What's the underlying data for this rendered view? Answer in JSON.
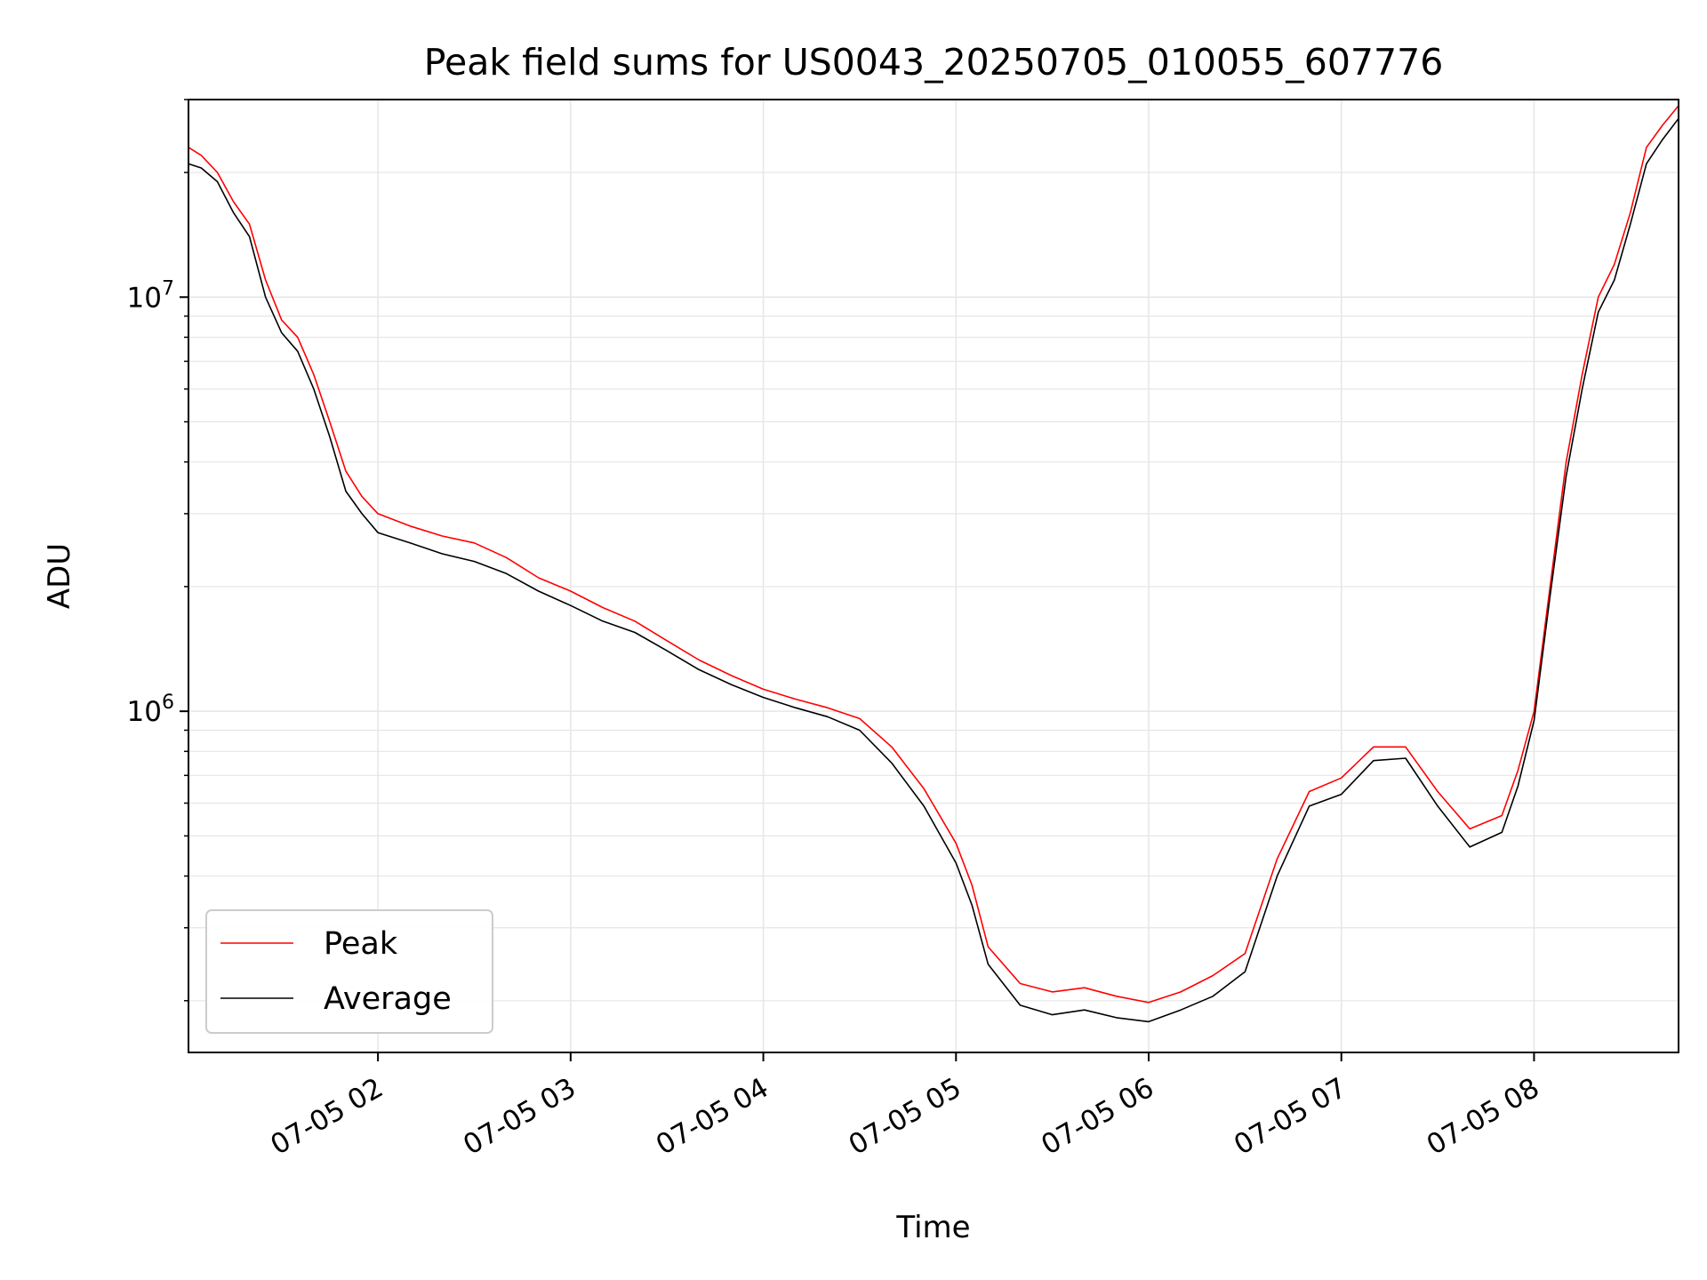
{
  "chart_data": {
    "type": "line",
    "title": "Peak field sums for US0043_20250705_010055_607776",
    "xlabel": "Time",
    "ylabel": "ADU",
    "yscale": "log",
    "ylim": [
      150000,
      30000000
    ],
    "xlim": [
      "2025-07-05 01:01",
      "2025-07-05 08:45"
    ],
    "x_ticks": [
      {
        "t": "2025-07-05 02:00",
        "label": "07-05 02"
      },
      {
        "t": "2025-07-05 03:00",
        "label": "07-05 03"
      },
      {
        "t": "2025-07-05 04:00",
        "label": "07-05 04"
      },
      {
        "t": "2025-07-05 05:00",
        "label": "07-05 05"
      },
      {
        "t": "2025-07-05 06:00",
        "label": "07-05 06"
      },
      {
        "t": "2025-07-05 07:00",
        "label": "07-05 07"
      },
      {
        "t": "2025-07-05 08:00",
        "label": "07-05 08"
      }
    ],
    "y_ticks": [
      {
        "v": 1000000,
        "base": "10",
        "exp": "6"
      },
      {
        "v": 10000000,
        "base": "10",
        "exp": "7"
      }
    ],
    "grid": true,
    "legend_position": "lower-left",
    "series": [
      {
        "name": "Peak",
        "color": "#ff0000"
      },
      {
        "name": "Average",
        "color": "#000000"
      }
    ],
    "x": [
      "2025-07-05 01:01",
      "2025-07-05 01:05",
      "2025-07-05 01:10",
      "2025-07-05 01:15",
      "2025-07-05 01:20",
      "2025-07-05 01:25",
      "2025-07-05 01:30",
      "2025-07-05 01:35",
      "2025-07-05 01:40",
      "2025-07-05 01:45",
      "2025-07-05 01:50",
      "2025-07-05 01:55",
      "2025-07-05 02:00",
      "2025-07-05 02:10",
      "2025-07-05 02:20",
      "2025-07-05 02:30",
      "2025-07-05 02:40",
      "2025-07-05 02:50",
      "2025-07-05 03:00",
      "2025-07-05 03:10",
      "2025-07-05 03:20",
      "2025-07-05 03:30",
      "2025-07-05 03:40",
      "2025-07-05 03:50",
      "2025-07-05 04:00",
      "2025-07-05 04:10",
      "2025-07-05 04:20",
      "2025-07-05 04:30",
      "2025-07-05 04:40",
      "2025-07-05 04:50",
      "2025-07-05 05:00",
      "2025-07-05 05:05",
      "2025-07-05 05:10",
      "2025-07-05 05:20",
      "2025-07-05 05:30",
      "2025-07-05 05:40",
      "2025-07-05 05:50",
      "2025-07-05 06:00",
      "2025-07-05 06:10",
      "2025-07-05 06:20",
      "2025-07-05 06:30",
      "2025-07-05 06:40",
      "2025-07-05 06:50",
      "2025-07-05 07:00",
      "2025-07-05 07:10",
      "2025-07-05 07:20",
      "2025-07-05 07:30",
      "2025-07-05 07:40",
      "2025-07-05 07:50",
      "2025-07-05 07:55",
      "2025-07-05 08:00",
      "2025-07-05 08:05",
      "2025-07-05 08:10",
      "2025-07-05 08:15",
      "2025-07-05 08:20",
      "2025-07-05 08:25",
      "2025-07-05 08:30",
      "2025-07-05 08:35",
      "2025-07-05 08:40",
      "2025-07-05 08:45"
    ],
    "peak_values": [
      23000000,
      22000000,
      20000000,
      17000000,
      15000000,
      11000000,
      8800000,
      8000000,
      6500000,
      5000000,
      3800000,
      3300000,
      3000000,
      2800000,
      2650000,
      2550000,
      2350000,
      2100000,
      1950000,
      1780000,
      1650000,
      1480000,
      1330000,
      1220000,
      1130000,
      1070000,
      1020000,
      960000,
      820000,
      650000,
      480000,
      380000,
      270000,
      220000,
      210000,
      215000,
      205000,
      198000,
      210000,
      230000,
      260000,
      440000,
      640000,
      690000,
      820000,
      820000,
      640000,
      520000,
      560000,
      720000,
      1000000,
      2000000,
      4000000,
      6500000,
      10000000,
      12000000,
      16000000,
      23000000,
      26000000,
      29000000
    ],
    "average_values": [
      21000000,
      20500000,
      19000000,
      16000000,
      14000000,
      10000000,
      8200000,
      7400000,
      6000000,
      4600000,
      3400000,
      3000000,
      2700000,
      2550000,
      2400000,
      2300000,
      2150000,
      1950000,
      1800000,
      1650000,
      1550000,
      1400000,
      1260000,
      1160000,
      1080000,
      1020000,
      970000,
      900000,
      750000,
      590000,
      430000,
      340000,
      245000,
      195000,
      185000,
      190000,
      182000,
      178000,
      190000,
      205000,
      235000,
      400000,
      590000,
      630000,
      760000,
      770000,
      590000,
      470000,
      510000,
      660000,
      950000,
      1900000,
      3700000,
      6000000,
      9200000,
      11000000,
      15000000,
      21000000,
      24000000,
      27000000
    ]
  }
}
